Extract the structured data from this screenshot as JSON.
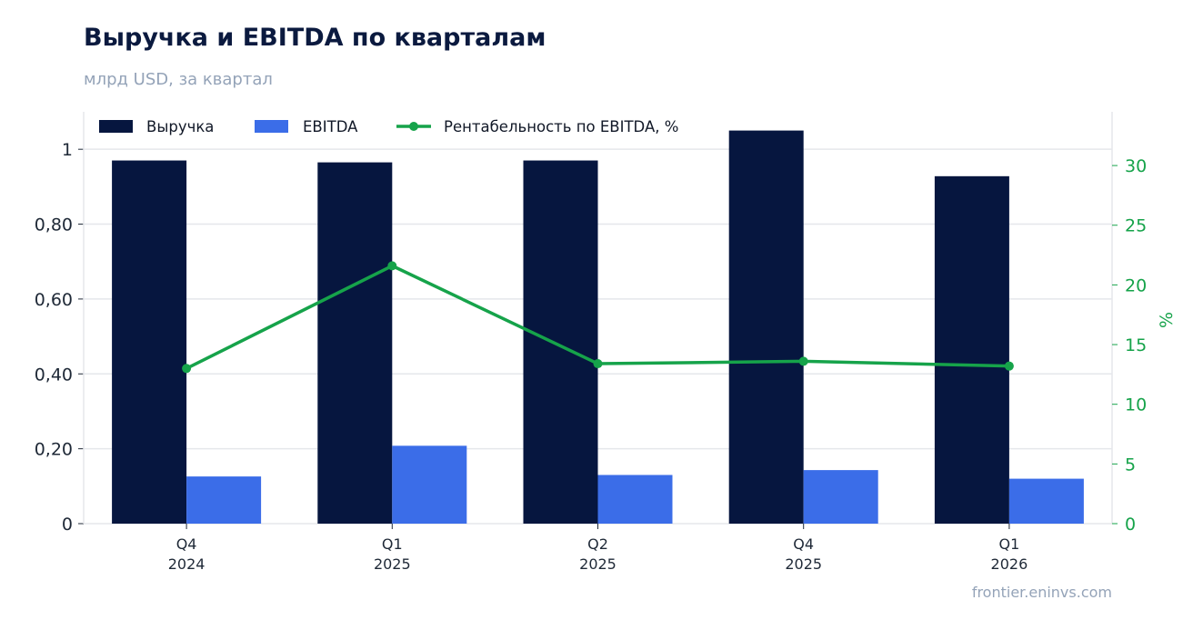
{
  "title": "Выручка и EBITDA по кварталам",
  "subtitle": "млрд USD, за квартал",
  "source": "frontier.eninvs.com",
  "chart_data": {
    "type": "bar",
    "categories": [
      [
        "Q4",
        "2024"
      ],
      [
        "Q1",
        "2025"
      ],
      [
        "Q2",
        "2025"
      ],
      [
        "Q4",
        "2025"
      ],
      [
        "Q1",
        "2026"
      ]
    ],
    "series": [
      {
        "name": "Выручка",
        "type": "bar",
        "axis": "left",
        "color": "#06163f",
        "values": [
          0.97,
          0.965,
          0.97,
          1.05,
          0.928
        ]
      },
      {
        "name": "EBITDA",
        "type": "bar",
        "axis": "left",
        "color": "#3b6de8",
        "values": [
          0.126,
          0.208,
          0.13,
          0.143,
          0.12
        ]
      },
      {
        "name": "Рентабельность по EBITDA, %",
        "type": "line",
        "axis": "right",
        "color": "#16a34a",
        "values": [
          13.0,
          21.6,
          13.4,
          13.6,
          13.2
        ]
      }
    ],
    "y_left": {
      "min": 0,
      "max": 1.1,
      "ticks": [
        0,
        0.2,
        0.4,
        0.6,
        0.8,
        1
      ],
      "tick_labels": [
        "0",
        "0,20",
        "0,40",
        "0,60",
        "0,80",
        "1"
      ]
    },
    "y_right": {
      "min": 0,
      "max": 34.5,
      "ticks": [
        0,
        5,
        10,
        15,
        20,
        25,
        30
      ],
      "tick_labels": [
        "0",
        "5",
        "10",
        "15",
        "20",
        "25",
        "30"
      ],
      "label": "%"
    },
    "grid": true,
    "legend": "top-left"
  }
}
